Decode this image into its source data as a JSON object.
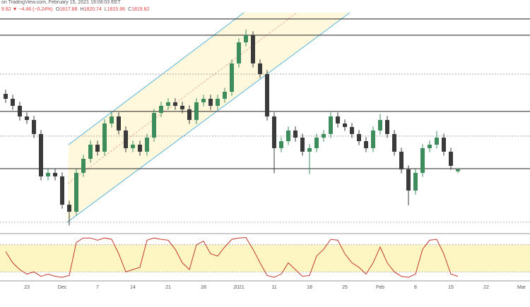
{
  "header": {
    "source": "on TradingView.com, February 15, 2021 19:08:03 EET",
    "change": "9.82 ▼ −4.46 (−0.24%)",
    "ohlc": [
      {
        "label": "O",
        "value": "1817.88"
      },
      {
        "label": "H",
        "value": "1820.74"
      },
      {
        "label": "L",
        "value": "1815.96"
      },
      {
        "label": "C",
        "value": "1819.82"
      }
    ]
  },
  "chart_data": {
    "type": "candlestick",
    "categories": [
      null,
      null,
      null,
      "23",
      null,
      null,
      null,
      null,
      "Dec",
      null,
      null,
      null,
      null,
      "7",
      null,
      null,
      null,
      null,
      "14",
      null,
      null,
      null,
      null,
      "21",
      null,
      null,
      null,
      null,
      "28",
      null,
      null,
      null,
      null,
      "2021",
      null,
      null,
      null,
      null,
      "11",
      null,
      null,
      null,
      null,
      "18",
      null,
      null,
      null,
      null,
      "25",
      null,
      null,
      null,
      null,
      "Feb",
      null,
      null,
      null,
      null,
      "8",
      null,
      null,
      null,
      null,
      "15",
      null,
      null,
      null,
      null,
      "22",
      null,
      null,
      null,
      null,
      "Mar"
    ],
    "open": [
      1895.0,
      1890.1,
      1883.1,
      1872.5,
      1869.0,
      1855.0,
      1812.8,
      1816.3,
      1812.8,
      1784.6,
      1777.6,
      1816.3,
      1830.3,
      1844.4,
      1837.4,
      1865.5,
      1872.5,
      1858.5,
      1840.9,
      1844.4,
      1837.4,
      1851.4,
      1876.0,
      1883.1,
      1886.6,
      1883.1,
      1879.6,
      1869.0,
      1886.6,
      1890.1,
      1883.1,
      1890.1,
      1897.1,
      1925.3,
      1946.3,
      1953.4,
      1925.3,
      1914.7,
      1872.5,
      1840.9,
      1847.9,
      1858.5,
      1851.4,
      1837.4,
      1840.9,
      1851.4,
      1855.0,
      1872.5,
      1865.5,
      1862.0,
      1855.0,
      1847.9,
      1840.9,
      1858.5,
      1869.0,
      1855.0,
      1837.4,
      1819.8,
      1798.7,
      1816.3,
      1840.9,
      1844.4,
      1851.4,
      1837.4,
      1817.88,
      null,
      null,
      null,
      null,
      null,
      null,
      null,
      null,
      null
    ],
    "high": [
      1899.0,
      1894.1,
      1887.1,
      1876.5,
      1873.0,
      1859.0,
      1820.3,
      1820.3,
      1816.8,
      1788.6,
      1820.3,
      1834.3,
      1848.4,
      1848.4,
      1869.5,
      1876.5,
      1876.5,
      1862.5,
      1848.4,
      1848.4,
      1855.4,
      1880.0,
      1887.1,
      1890.6,
      1890.6,
      1887.1,
      1883.6,
      1890.6,
      1894.1,
      1894.1,
      1894.1,
      1901.1,
      1929.3,
      1950.3,
      1959.0,
      1957.4,
      1929.3,
      1918.7,
      1876.5,
      1851.9,
      1862.5,
      1862.5,
      1855.4,
      1844.9,
      1855.4,
      1859.0,
      1876.5,
      1876.5,
      1869.5,
      1866.0,
      1859.0,
      1851.9,
      1862.5,
      1875.0,
      1873.0,
      1859.0,
      1841.4,
      1823.8,
      1820.3,
      1844.9,
      1848.4,
      1858.0,
      1855.4,
      1841.4,
      1820.74,
      null,
      null,
      null,
      null,
      null,
      null,
      null,
      null,
      null
    ],
    "low": [
      1886.1,
      1879.1,
      1868.5,
      1865.0,
      1851.0,
      1808.8,
      1808.8,
      1808.8,
      1780.6,
      1764.0,
      1773.6,
      1812.3,
      1826.3,
      1833.4,
      1833.4,
      1861.5,
      1854.5,
      1836.9,
      1836.9,
      1833.4,
      1833.4,
      1847.4,
      1872.0,
      1879.1,
      1879.1,
      1875.6,
      1865.0,
      1865.0,
      1882.6,
      1879.1,
      1879.1,
      1886.1,
      1893.1,
      1921.3,
      1942.3,
      1921.3,
      1910.7,
      1868.5,
      1816.0,
      1836.9,
      1843.9,
      1847.4,
      1833.4,
      1815.0,
      1836.9,
      1847.4,
      1851.0,
      1861.5,
      1858.0,
      1851.0,
      1843.9,
      1836.9,
      1836.9,
      1854.5,
      1851.0,
      1833.4,
      1815.8,
      1784.0,
      1794.7,
      1812.3,
      1836.9,
      1840.4,
      1833.4,
      1819.3,
      1815.96,
      null,
      null,
      null,
      null,
      null,
      null,
      null,
      null,
      null
    ],
    "close": [
      1890.1,
      1883.1,
      1872.5,
      1869.0,
      1855.0,
      1812.8,
      1816.3,
      1812.8,
      1784.6,
      1777.6,
      1816.3,
      1830.3,
      1844.4,
      1837.4,
      1865.5,
      1872.5,
      1858.5,
      1840.9,
      1844.4,
      1837.4,
      1851.4,
      1876.0,
      1883.1,
      1886.6,
      1883.1,
      1879.6,
      1869.0,
      1886.6,
      1890.1,
      1883.1,
      1890.1,
      1897.1,
      1925.3,
      1946.3,
      1953.4,
      1925.3,
      1914.7,
      1872.5,
      1840.9,
      1847.9,
      1858.5,
      1851.4,
      1837.4,
      1840.9,
      1851.4,
      1855.0,
      1872.5,
      1865.5,
      1862.0,
      1855.0,
      1847.9,
      1840.9,
      1858.5,
      1869.0,
      1855.0,
      1837.4,
      1819.8,
      1798.7,
      1816.3,
      1840.9,
      1844.4,
      1851.4,
      1837.4,
      1823.3,
      1819.82,
      null,
      null,
      null,
      null,
      null,
      null,
      null,
      null,
      null
    ],
    "up_color": "#3d8c5c",
    "down_color": "#3a3a3a",
    "ylim": [
      1756.5,
      1988.5
    ],
    "levels": [
      {
        "value": 1969.6,
        "style": "solid"
      },
      {
        "value": 1953.4,
        "style": "solid"
      },
      {
        "value": 1914.7,
        "style": "dashed"
      },
      {
        "value": 1877.5,
        "style": "solid"
      },
      {
        "value": 1852.9,
        "style": "dashed"
      },
      {
        "value": 1820.5,
        "style": "solid"
      },
      {
        "value": 1767.1,
        "style": "dashed"
      }
    ],
    "oscillator": {
      "color": "#c0392b",
      "ylim": [
        0,
        100
      ],
      "bands": [
        20,
        80
      ],
      "values": [
        65,
        40,
        25,
        15,
        20,
        10,
        15,
        10,
        8,
        12,
        85,
        95,
        95,
        90,
        95,
        92,
        60,
        20,
        25,
        30,
        90,
        95,
        92,
        90,
        70,
        40,
        25,
        80,
        88,
        60,
        55,
        75,
        92,
        95,
        96,
        70,
        40,
        12,
        8,
        15,
        40,
        25,
        10,
        12,
        55,
        70,
        92,
        90,
        60,
        40,
        30,
        15,
        40,
        75,
        40,
        20,
        10,
        8,
        15,
        70,
        90,
        92,
        60,
        15,
        10,
        null,
        null,
        null,
        null,
        null,
        null,
        null,
        null,
        null
      ]
    }
  }
}
